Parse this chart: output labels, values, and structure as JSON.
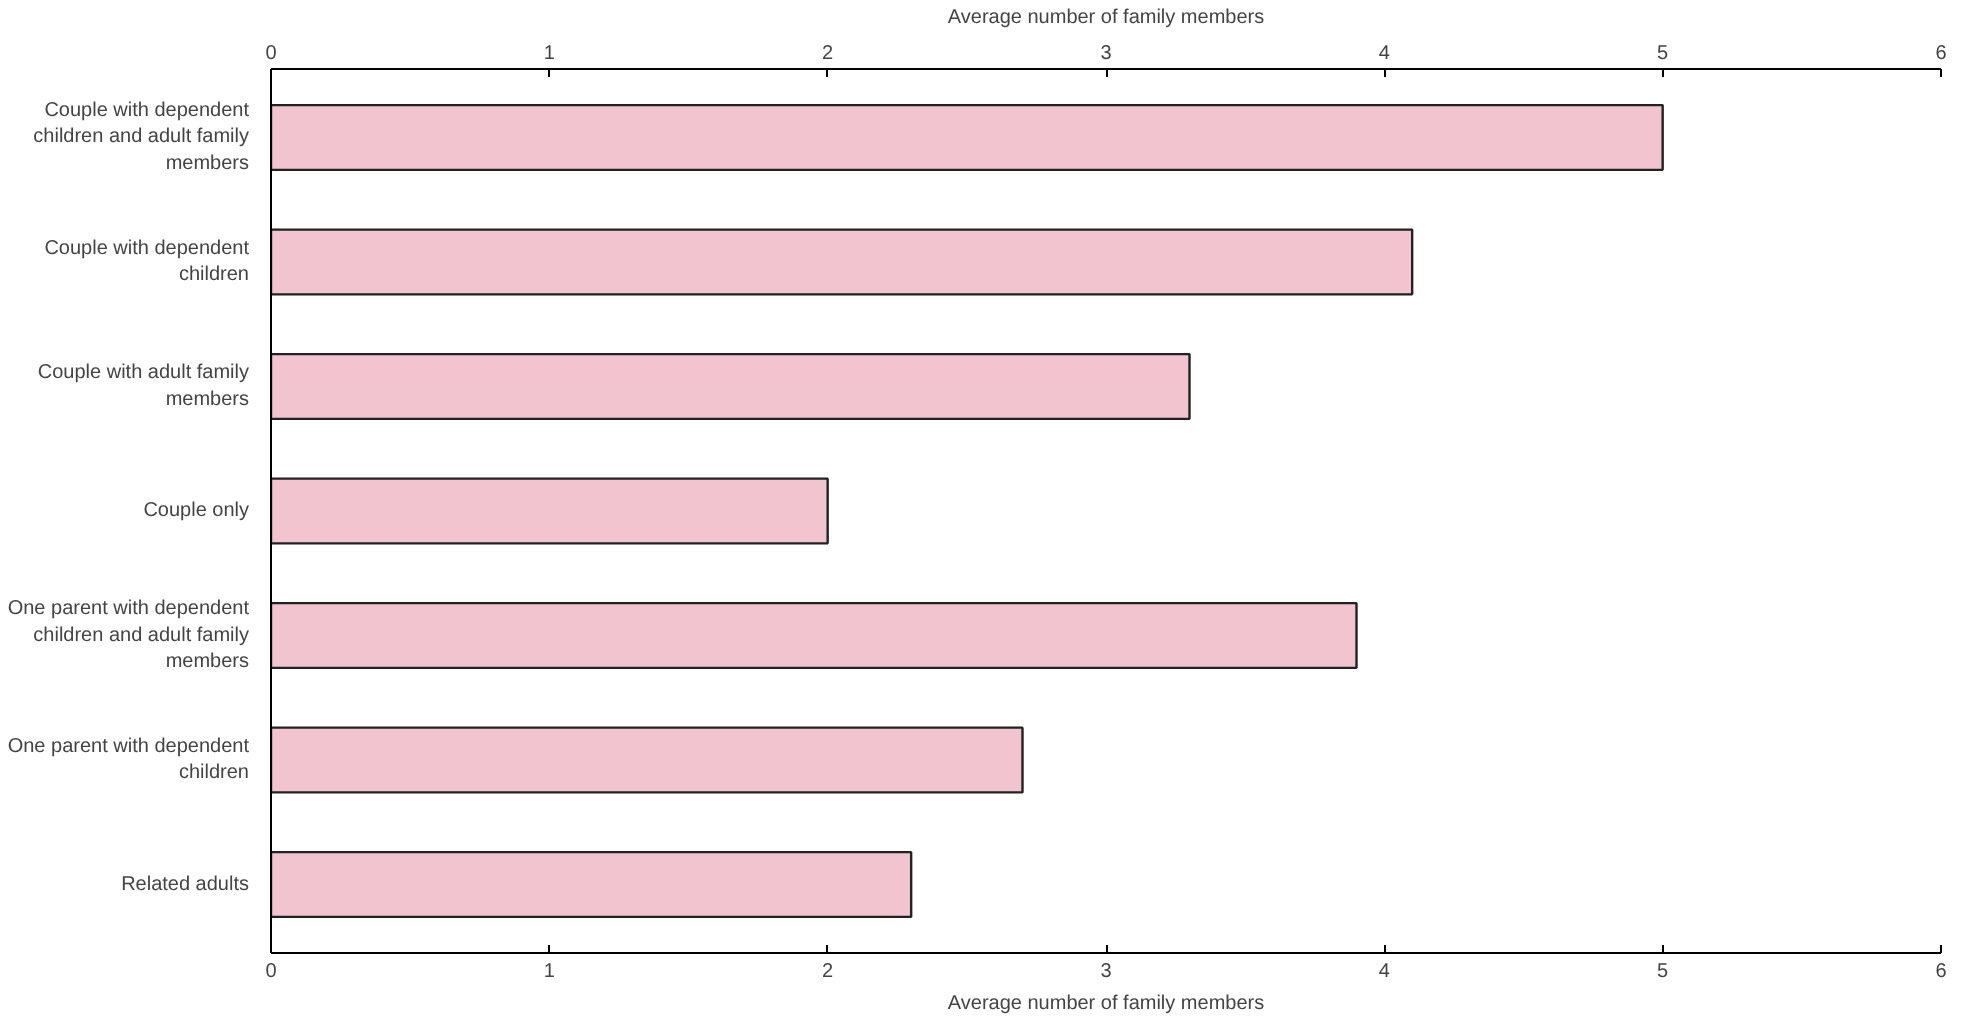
{
  "chart_data": {
    "type": "bar",
    "orientation": "horizontal",
    "xlabel": "Average number of family members",
    "x2label": "Average number of family members",
    "categories": [
      "Couple with dependent children and adult family members",
      "Couple with dependent children",
      "Couple with adult family members",
      "Couple only",
      "One parent with dependent children and adult family members",
      "One parent with dependent children",
      "Related adults"
    ],
    "values": [
      5.0,
      4.1,
      3.3,
      2.0,
      3.9,
      2.7,
      2.3
    ],
    "color": "#f2c4d0",
    "xlim": [
      0,
      6
    ],
    "xticks": [
      0,
      1,
      2,
      3,
      4,
      5,
      6
    ],
    "x2lim": [
      0,
      6
    ],
    "x2ticks": [
      0,
      1,
      2,
      3,
      4,
      5,
      6
    ],
    "grid": false
  }
}
